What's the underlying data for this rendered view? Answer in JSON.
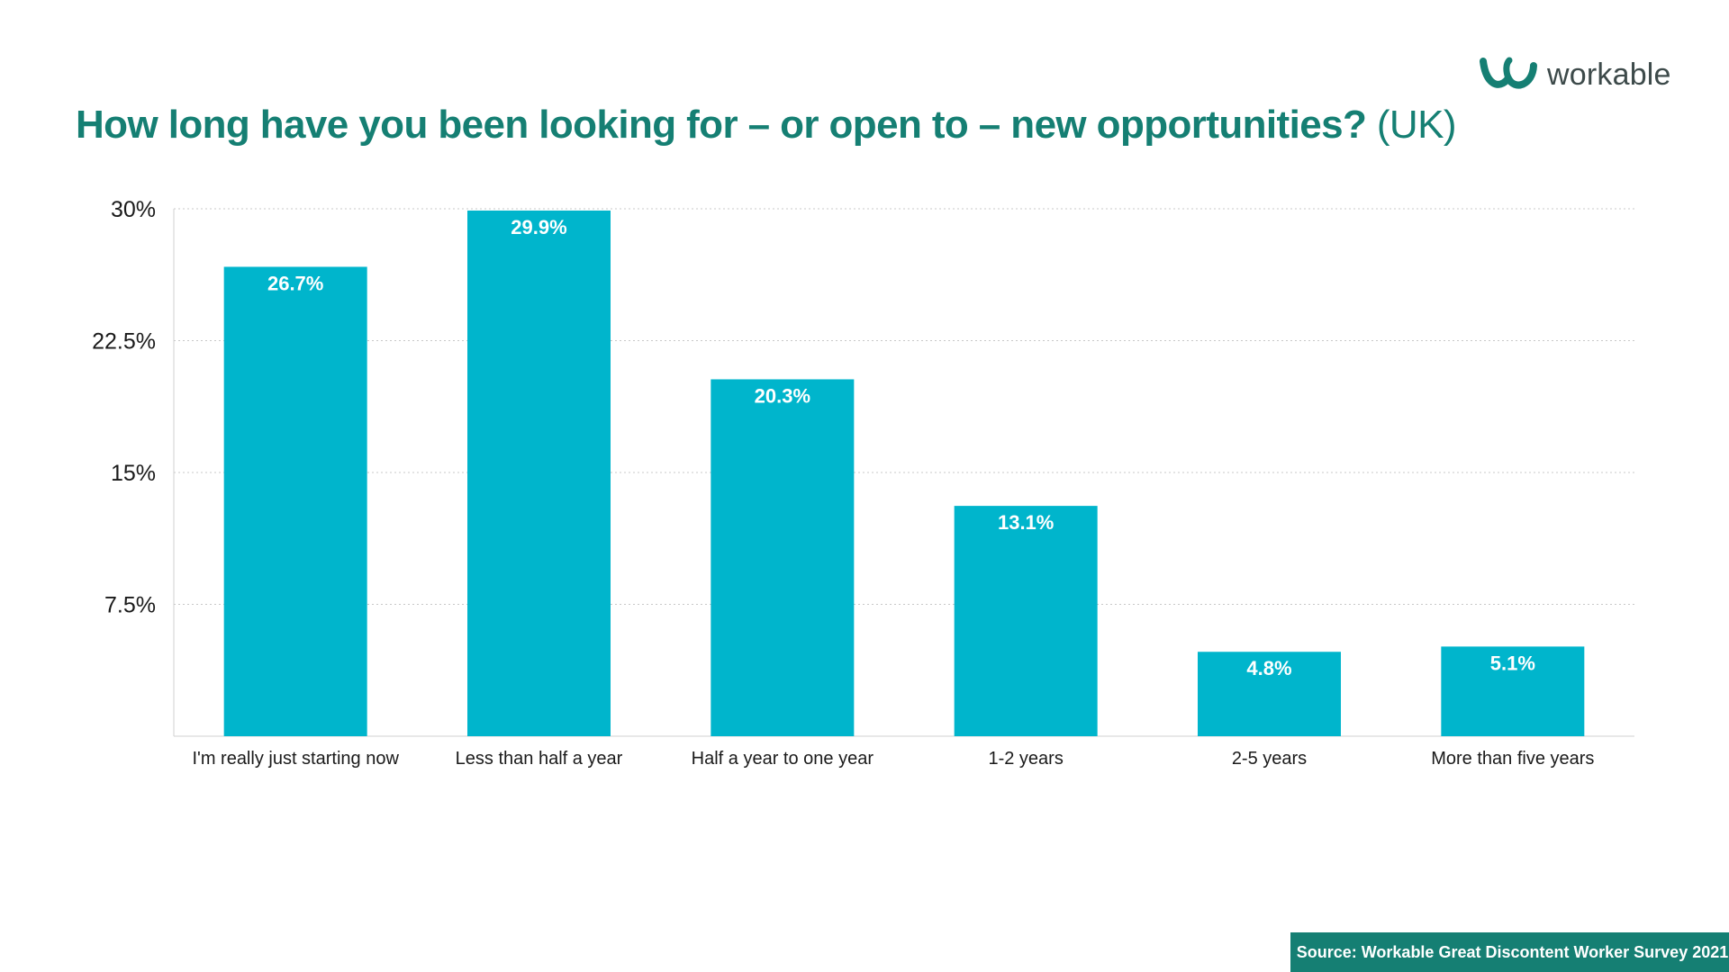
{
  "brand": {
    "name": "workable",
    "logo_icon": "workable-logo-icon",
    "color": "#157f73"
  },
  "colors": {
    "bar": "#00b5cc",
    "title": "#157f73",
    "source_bg": "#157f73"
  },
  "chart_data": {
    "type": "bar",
    "title": "How long have you been looking for – or open to – new opportunities?",
    "title_suffix": "(UK)",
    "categories": [
      "I'm really just starting now",
      "Less than half a year",
      "Half a year to one year",
      "1-2 years",
      "2-5 years",
      "More than five years"
    ],
    "values": [
      26.7,
      29.9,
      20.3,
      13.1,
      4.8,
      5.1
    ],
    "data_labels": [
      "26.7%",
      "29.9%",
      "20.3%",
      "13.1%",
      "4.8%",
      "5.1%"
    ],
    "ylim": [
      0,
      30
    ],
    "yticks": [
      7.5,
      15,
      22.5,
      30
    ],
    "ytick_labels": [
      "7.5%",
      "15%",
      "22.5%",
      "30%"
    ],
    "xlabel": "",
    "ylabel": "",
    "grid": true,
    "legend": "none"
  },
  "source": {
    "text": "Source: Workable Great Discontent Worker Survey 2021"
  }
}
